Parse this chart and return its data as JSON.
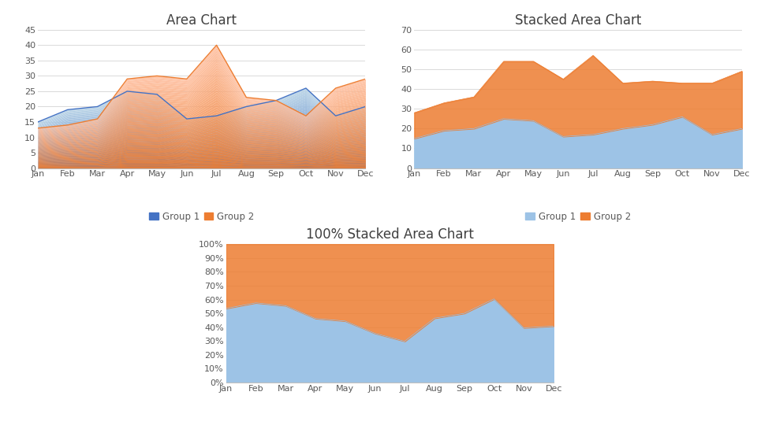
{
  "months": [
    "Jan",
    "Feb",
    "Mar",
    "Apr",
    "May",
    "Jun",
    "Jul",
    "Aug",
    "Sep",
    "Oct",
    "Nov",
    "Dec"
  ],
  "group1": [
    15,
    19,
    20,
    25,
    24,
    16,
    17,
    20,
    22,
    26,
    17,
    20
  ],
  "group2": [
    13,
    14,
    16,
    29,
    30,
    29,
    40,
    23,
    22,
    17,
    26,
    29
  ],
  "color1_dark": "#4472C4",
  "color1_light": "#9DC3E6",
  "color2_dark": "#ED7D31",
  "color2_light": "#F4B183",
  "bg_color": "#FFFFFF",
  "title1": "Area Chart",
  "title2": "Stacked Area Chart",
  "title3": "100% Stacked Area Chart",
  "legend_label1": "Group 1",
  "legend_label2": "Group 2",
  "chart1_ylim": [
    0,
    45
  ],
  "chart1_yticks": [
    0,
    5,
    10,
    15,
    20,
    25,
    30,
    35,
    40,
    45
  ],
  "chart2_ylim": [
    0,
    70
  ],
  "chart2_yticks": [
    0,
    10,
    20,
    30,
    40,
    50,
    60,
    70
  ],
  "title_color": "#404040",
  "tick_color": "#595959",
  "grid_color": "#D9D9D9",
  "title_fontsize": 12,
  "tick_fontsize": 8,
  "legend_fontsize": 8.5
}
